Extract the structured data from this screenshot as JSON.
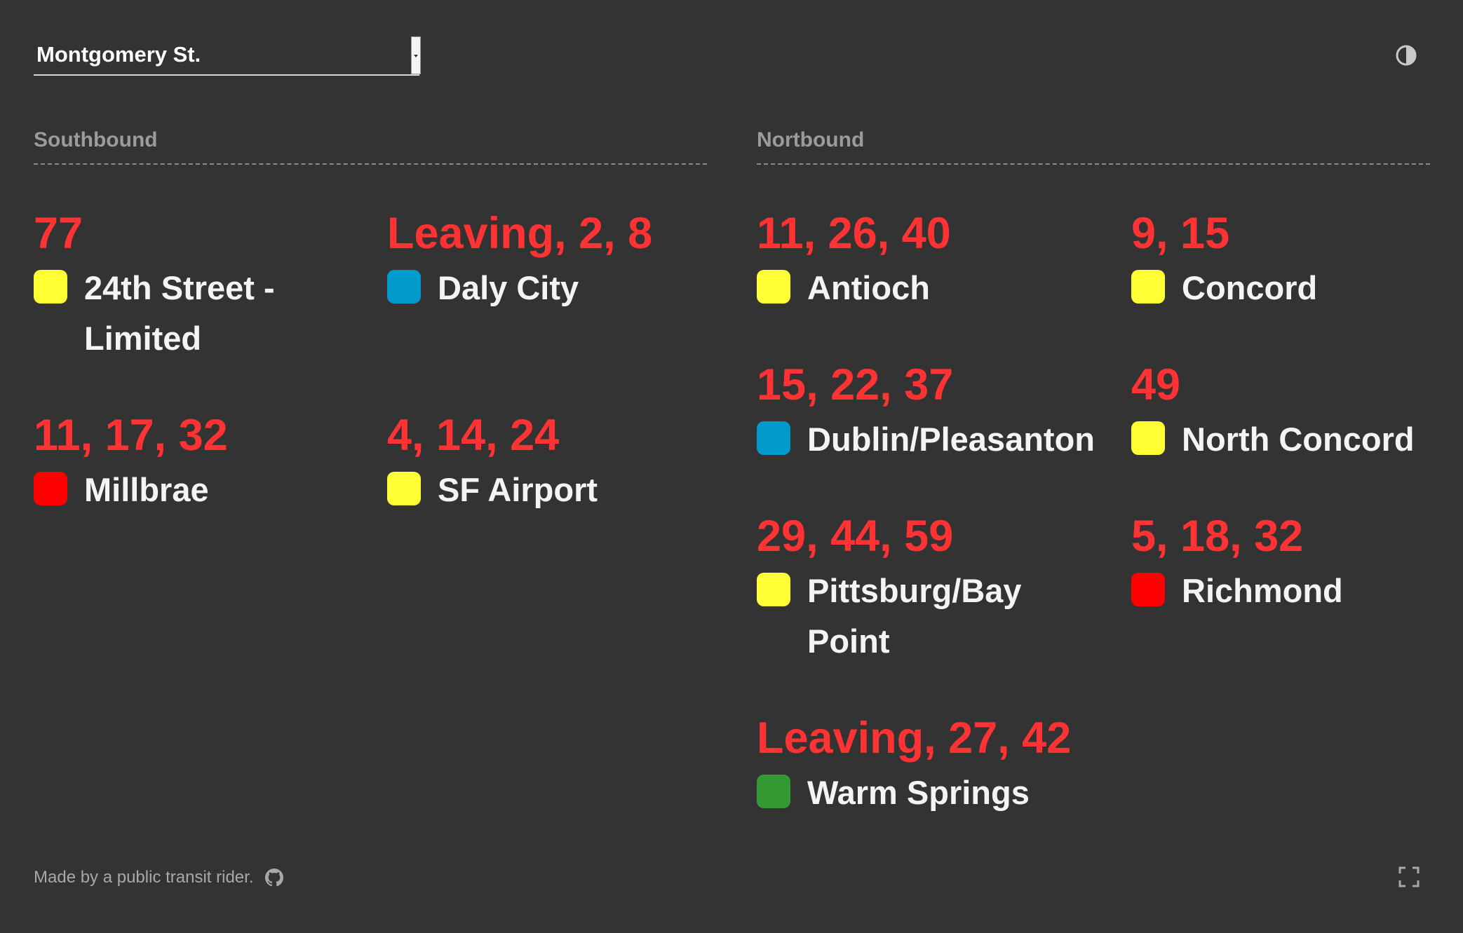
{
  "station": {
    "selected": "Montgomery St."
  },
  "theme_toggle_icon": "contrast-icon",
  "southbound": {
    "heading": "Southbound",
    "entries": [
      {
        "times": "77",
        "destination": "24th Street - Limited",
        "color": "#ffff33"
      },
      {
        "times": "Leaving, 2, 8",
        "destination": "Daly City",
        "color": "#0099cc"
      },
      {
        "times": "11, 17, 32",
        "destination": "Millbrae",
        "color": "#ff0000"
      },
      {
        "times": "4, 14, 24",
        "destination": "SF Airport",
        "color": "#ffff33"
      }
    ]
  },
  "northbound": {
    "heading": "Nortbound",
    "entries": [
      {
        "times": "11, 26, 40",
        "destination": "Antioch",
        "color": "#ffff33"
      },
      {
        "times": "9, 15",
        "destination": "Concord",
        "color": "#ffff33"
      },
      {
        "times": "15, 22, 37",
        "destination": "Dublin/Pleasanton",
        "color": "#0099cc"
      },
      {
        "times": "49",
        "destination": "North Concord",
        "color": "#ffff33"
      },
      {
        "times": "29, 44, 59",
        "destination": "Pittsburg/Bay Point",
        "color": "#ffff33"
      },
      {
        "times": "5, 18, 32",
        "destination": "Richmond",
        "color": "#ff0000"
      },
      {
        "times": "Leaving, 27, 42",
        "destination": "Warm Springs",
        "color": "#339933"
      }
    ]
  },
  "footer": {
    "text": "Made by a public transit rider.",
    "github_icon": "github-icon",
    "fullscreen_icon": "fullscreen-icon"
  },
  "colors": {
    "background": "#333333",
    "times": "#ff3333",
    "heading": "#9b9b9b"
  }
}
